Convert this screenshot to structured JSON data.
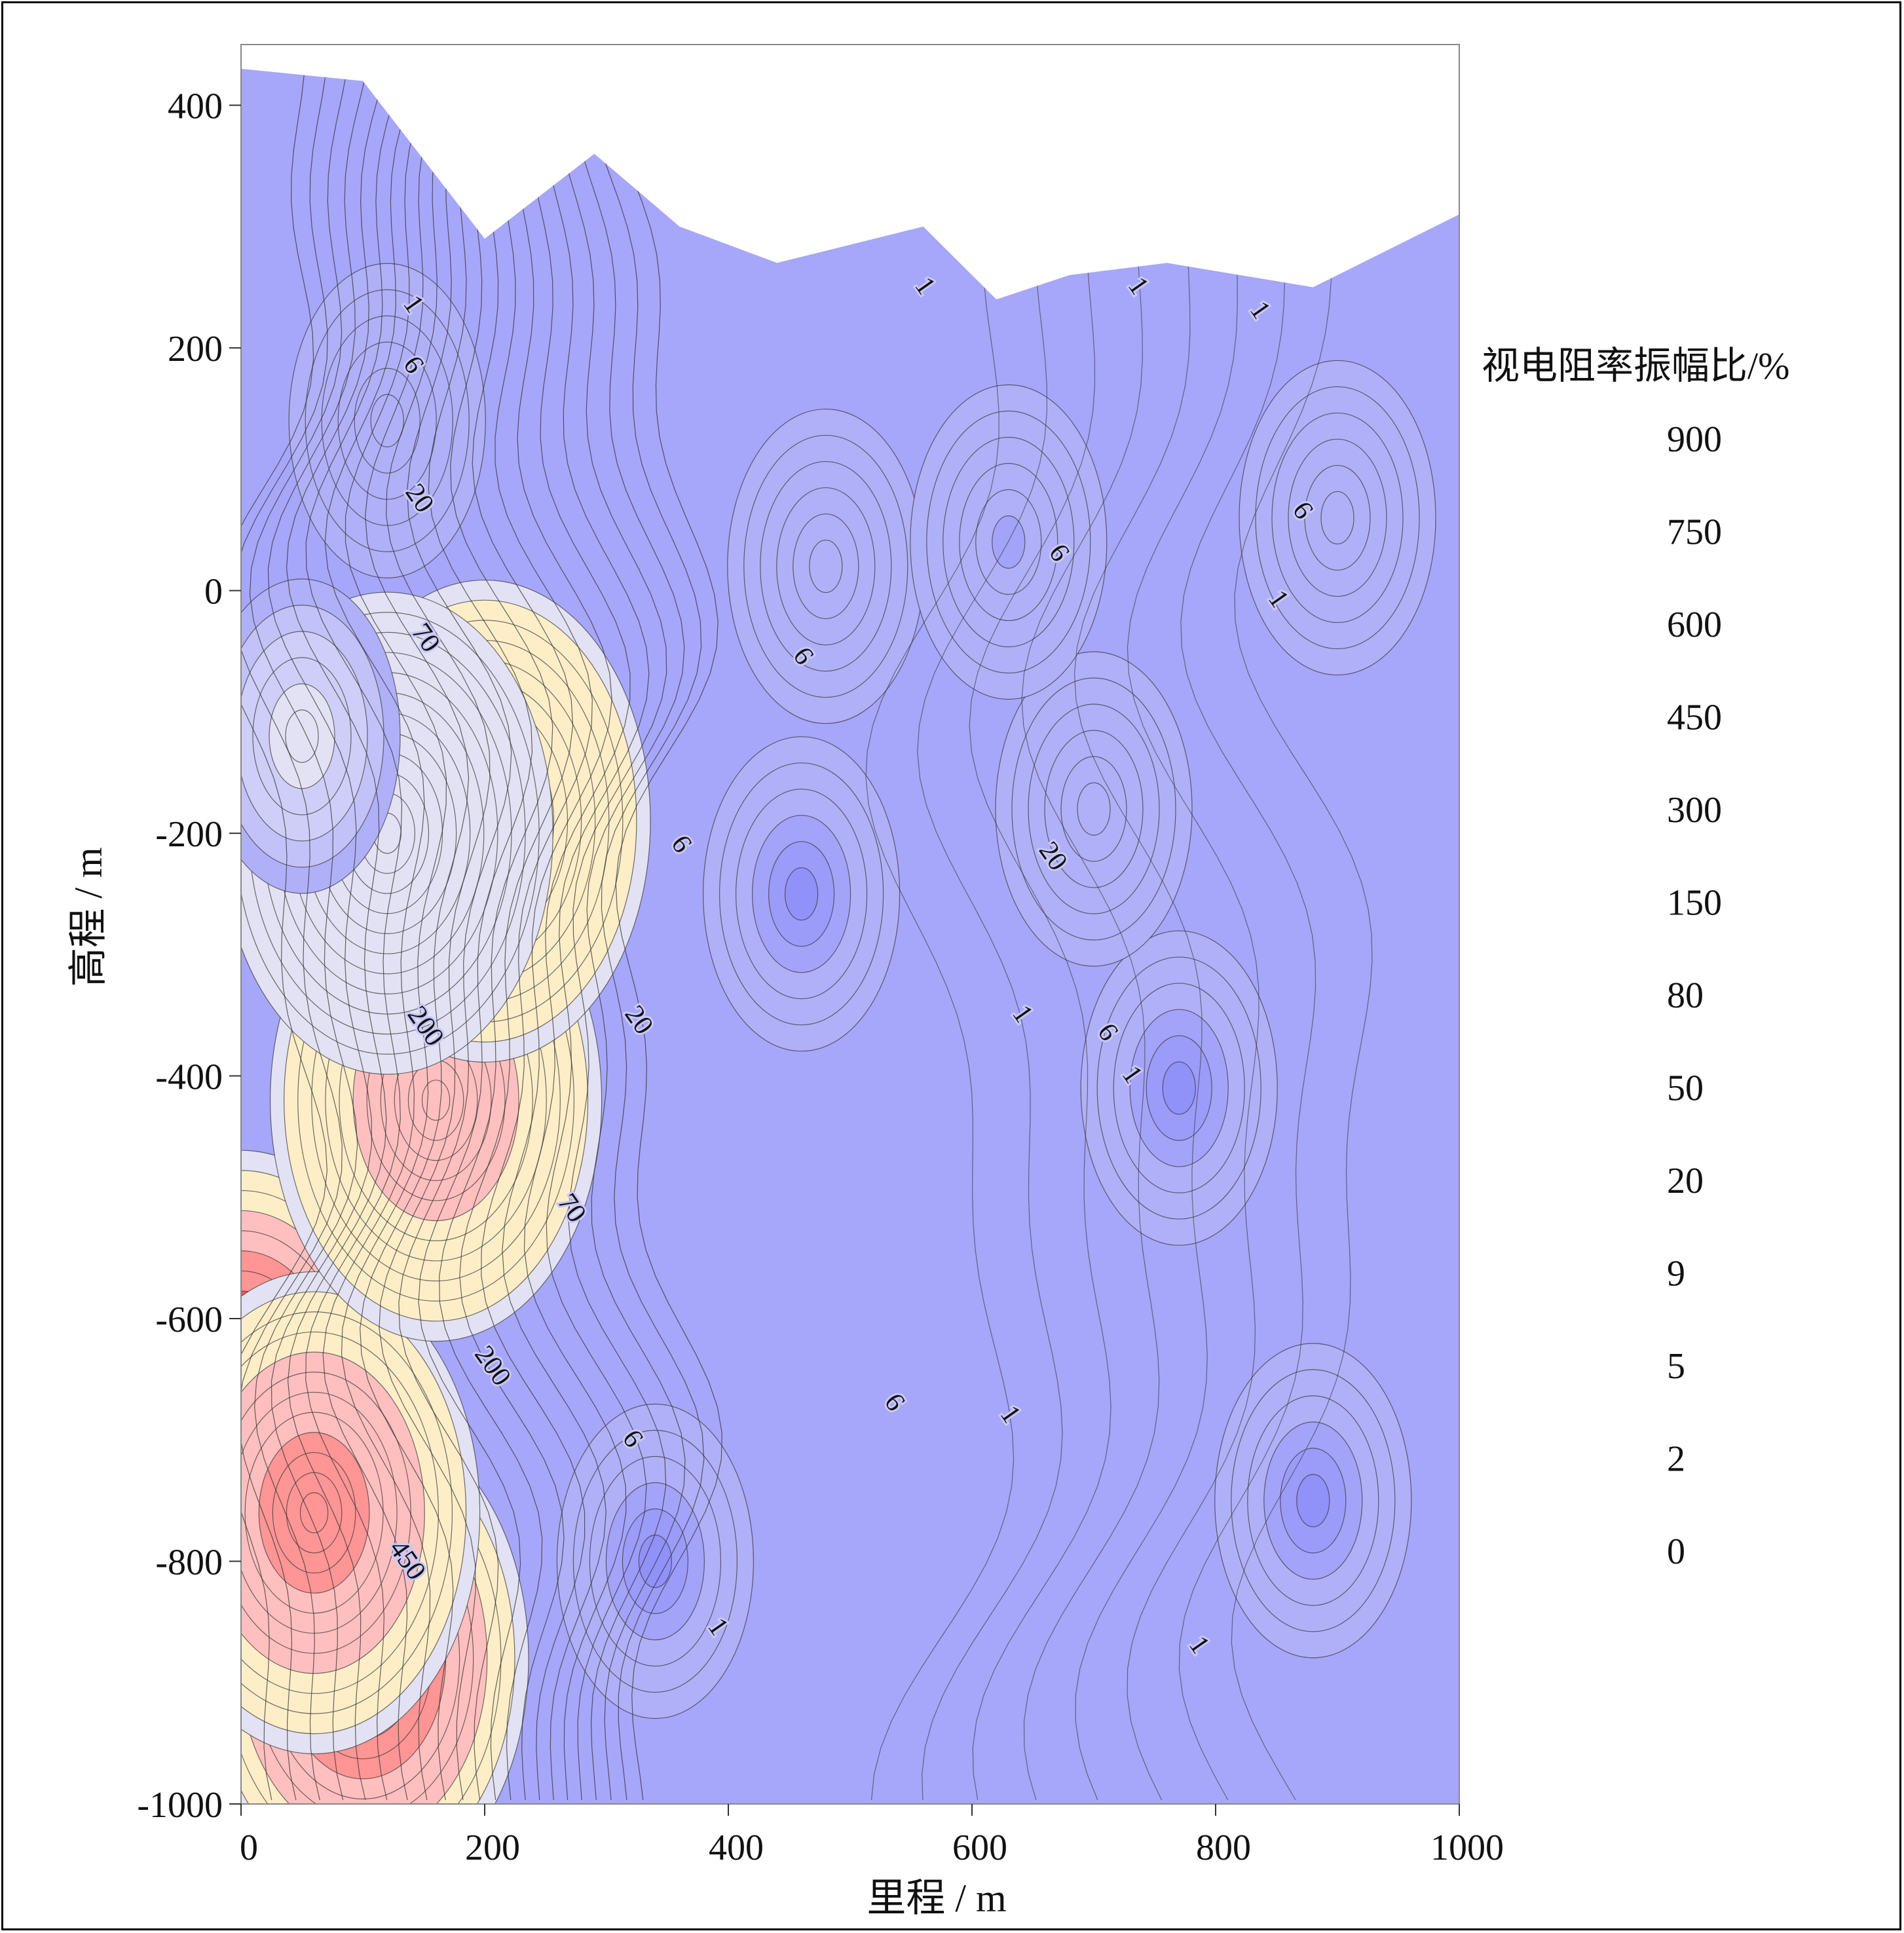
{
  "chart_data": {
    "type": "heatmap",
    "title": "",
    "xlabel": "里程 / m",
    "ylabel": "高程 / m",
    "xlim": [
      0,
      1000
    ],
    "ylim": [
      -1000,
      450
    ],
    "x_ticks": [
      0,
      200,
      400,
      600,
      800,
      1000
    ],
    "y_ticks": [
      400,
      200,
      0,
      -200,
      -400,
      -600,
      -800,
      -1000
    ],
    "grid": false,
    "legend": {
      "title": "视电阻率振幅比/%",
      "placement": "right",
      "tick_labels": [
        "900",
        "750",
        "600",
        "450",
        "300",
        "150",
        "80",
        "50",
        "20",
        "9",
        "5",
        "2",
        "0"
      ],
      "colors": [
        "#ff0000",
        "#ff2020",
        "#ff3a3a",
        "#ff5252",
        "#ff6a6a",
        "#ff8080",
        "#ff9595",
        "#ffaaaa",
        "#ffbfbf",
        "#ffd2d2",
        "#fee0c6",
        "#fdeec8",
        "#ffffc8",
        "#ecece4",
        "#e2e2f4",
        "#dadaf4",
        "#d4d4f6",
        "#ceceF8",
        "#c8c8f8",
        "#c2c2f8",
        "#bcbcf8",
        "#b6b6f8",
        "#b0b0f8",
        "#aaaaf9",
        "#a6a6fa",
        "#a3a3fa",
        "#a0a0fa",
        "#9d9dfa",
        "#9b9bfa",
        "#9999fa",
        "#9797fa",
        "#9595fa",
        "#9393fa",
        "#9191fa"
      ]
    },
    "surface": {
      "x": [
        0,
        100,
        200,
        290,
        360,
        440,
        560,
        620,
        680,
        760,
        880,
        1000
      ],
      "top": [
        430,
        420,
        290,
        360,
        300,
        270,
        300,
        240,
        260,
        270,
        250,
        310
      ]
    },
    "anomalies": [
      {
        "x": 0,
        "y": -660,
        "value": 900
      },
      {
        "x": 100,
        "y": -880,
        "value": 750
      },
      {
        "x": 60,
        "y": -760,
        "value": 600
      },
      {
        "x": 160,
        "y": -420,
        "value": 450
      },
      {
        "x": 200,
        "y": -190,
        "value": 300
      },
      {
        "x": 120,
        "y": -200,
        "value": 150
      },
      {
        "x": 50,
        "y": -120,
        "value": 100
      },
      {
        "x": 340,
        "y": -800,
        "value": 0
      },
      {
        "x": 460,
        "y": -250,
        "value": 0
      },
      {
        "x": 880,
        "y": -750,
        "value": 0
      },
      {
        "x": 770,
        "y": -410,
        "value": 0
      },
      {
        "x": 900,
        "y": 60,
        "value": 20
      },
      {
        "x": 700,
        "y": -180,
        "value": 20
      },
      {
        "x": 480,
        "y": 20,
        "value": 20
      },
      {
        "x": 120,
        "y": 140,
        "value": 20
      },
      {
        "x": 630,
        "y": 40,
        "value": 9
      }
    ],
    "contour_labels": [
      {
        "text": "1",
        "x": 140,
        "y": 235
      },
      {
        "text": "6",
        "x": 140,
        "y": 185
      },
      {
        "text": "20",
        "x": 145,
        "y": 75
      },
      {
        "text": "70",
        "x": 150,
        "y": -40
      },
      {
        "text": "200",
        "x": 150,
        "y": -360
      },
      {
        "text": "200",
        "x": 205,
        "y": -640
      },
      {
        "text": "450",
        "x": 135,
        "y": -800
      },
      {
        "text": "70",
        "x": 270,
        "y": -510
      },
      {
        "text": "20",
        "x": 325,
        "y": -355
      },
      {
        "text": "6",
        "x": 360,
        "y": -210
      },
      {
        "text": "6",
        "x": 460,
        "y": -55
      },
      {
        "text": "6",
        "x": 670,
        "y": 30
      },
      {
        "text": "6",
        "x": 870,
        "y": 65
      },
      {
        "text": "1",
        "x": 850,
        "y": -8
      },
      {
        "text": "1",
        "x": 560,
        "y": 250
      },
      {
        "text": "1",
        "x": 735,
        "y": 250
      },
      {
        "text": "1",
        "x": 835,
        "y": 230
      },
      {
        "text": "20",
        "x": 665,
        "y": -220
      },
      {
        "text": "1",
        "x": 640,
        "y": -350
      },
      {
        "text": "6",
        "x": 710,
        "y": -365
      },
      {
        "text": "1",
        "x": 730,
        "y": -400
      },
      {
        "text": "6",
        "x": 320,
        "y": -700
      },
      {
        "text": "6",
        "x": 535,
        "y": -670
      },
      {
        "text": "1",
        "x": 630,
        "y": -680
      },
      {
        "text": "1",
        "x": 390,
        "y": -855
      },
      {
        "text": "1",
        "x": 785,
        "y": -870
      }
    ]
  }
}
